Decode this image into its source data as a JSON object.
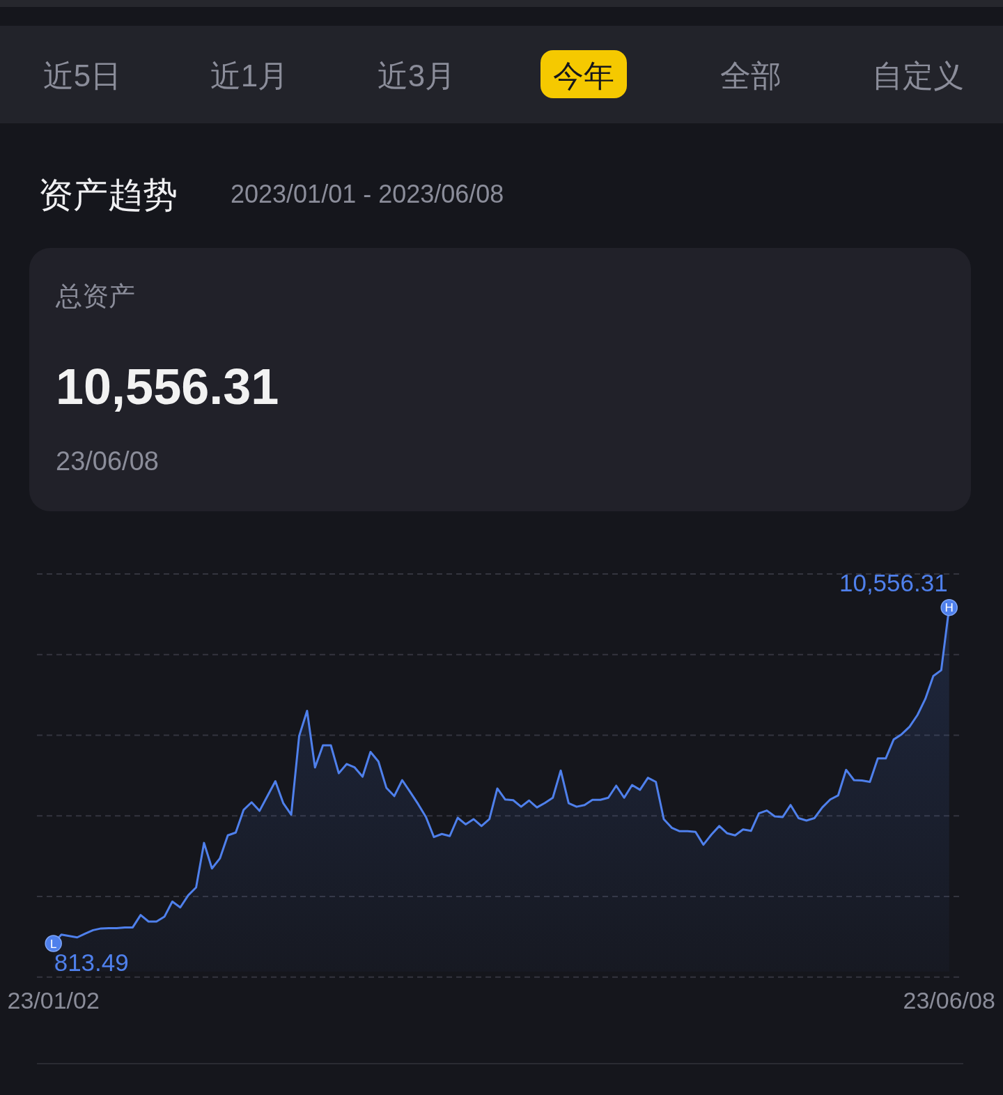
{
  "chart_data": {
    "type": "area",
    "title": "资产趋势",
    "subtitle": "2023/01/01 - 2023/06/08",
    "annotations": [
      "近5日",
      "近1月",
      "近3月",
      "今年",
      "全部",
      "自定义",
      "总资产",
      "10,556.31",
      "23/06/08",
      {
        "text": "L",
        "x": "23/01/02",
        "y": 813.49
      },
      {
        "text": "H",
        "x": "23/06/08",
        "y": 10556.31
      }
    ],
    "categories": [
      "23/01/02",
      null,
      null,
      null,
      null,
      null,
      null,
      null,
      null,
      null,
      null,
      null,
      null,
      null,
      null,
      null,
      null,
      null,
      null,
      null,
      null,
      null,
      null,
      null,
      null,
      null,
      null,
      null,
      null,
      null,
      null,
      null,
      null,
      null,
      null,
      null,
      null,
      null,
      null,
      null,
      null,
      null,
      null,
      null,
      null,
      null,
      null,
      null,
      null,
      null,
      null,
      null,
      null,
      null,
      null,
      null,
      null,
      null,
      null,
      null,
      null,
      null,
      null,
      null,
      null,
      null,
      null,
      null,
      null,
      null,
      null,
      null,
      null,
      null,
      null,
      null,
      null,
      null,
      null,
      null,
      null,
      null,
      null,
      null,
      null,
      null,
      null,
      null,
      null,
      null,
      null,
      null,
      null,
      null,
      null,
      null,
      null,
      null,
      null,
      null,
      null,
      null,
      null,
      null,
      null,
      null,
      null,
      null,
      null,
      null,
      null,
      null,
      null,
      "23/06/08"
    ],
    "values": [
      813.49,
      1070,
      1030,
      990,
      1100,
      1200,
      1250,
      1260,
      1260,
      1280,
      1280,
      1640,
      1450,
      1450,
      1590,
      2030,
      1860,
      2210,
      2440,
      3730,
      2990,
      3280,
      3950,
      4030,
      4690,
      4910,
      4660,
      5090,
      5520,
      4880,
      4550,
      6830,
      7560,
      5920,
      6560,
      6560,
      5750,
      6020,
      5920,
      5650,
      6370,
      6090,
      5330,
      5090,
      5550,
      5210,
      4860,
      4480,
      3900,
      3990,
      3930,
      4460,
      4270,
      4420,
      4220,
      4420,
      5310,
      4990,
      4970,
      4780,
      4960,
      4760,
      4890,
      5040,
      5830,
      4880,
      4780,
      4830,
      4980,
      4980,
      5040,
      5390,
      5040,
      5410,
      5270,
      5620,
      5500,
      4420,
      4170,
      4070,
      4070,
      4050,
      3680,
      3970,
      4220,
      4010,
      3950,
      4120,
      4080,
      4590,
      4670,
      4500,
      4480,
      4830,
      4450,
      4380,
      4450,
      4760,
      4990,
      5110,
      5850,
      5550,
      5540,
      5500,
      6180,
      6180,
      6730,
      6880,
      7100,
      7440,
      7910,
      8570,
      8740,
      10556.31
    ],
    "value_labels": [
      "813.49",
      null,
      null,
      null,
      null,
      null,
      null,
      null,
      null,
      null,
      null,
      null,
      null,
      null,
      null,
      null,
      null,
      null,
      null,
      null,
      null,
      null,
      null,
      null,
      null,
      null,
      null,
      null,
      null,
      null,
      null,
      null,
      null,
      null,
      null,
      null,
      null,
      null,
      null,
      null,
      null,
      null,
      null,
      null,
      null,
      null,
      null,
      null,
      null,
      null,
      null,
      null,
      null,
      null,
      null,
      null,
      null,
      null,
      null,
      null,
      null,
      null,
      null,
      null,
      null,
      null,
      null,
      null,
      null,
      null,
      null,
      null,
      null,
      null,
      null,
      null,
      null,
      null,
      null,
      null,
      null,
      null,
      null,
      null,
      null,
      null,
      null,
      null,
      null,
      null,
      null,
      null,
      null,
      null,
      null,
      null,
      null,
      null,
      null,
      null,
      null,
      null,
      null,
      null,
      null,
      null,
      null,
      null,
      null,
      null,
      null,
      null,
      null,
      "10,556.31"
    ],
    "color": "#4f80ec",
    "ylim": [
      -160,
      11530
    ],
    "yticks": [
      {
        "value": -160,
        "label": null
      },
      {
        "value": 2178,
        "label": null
      },
      {
        "value": 4516,
        "label": null
      },
      {
        "value": 6854,
        "label": null
      },
      {
        "value": 9192,
        "label": null
      },
      {
        "value": 11530,
        "label": null
      }
    ],
    "grid": "y",
    "tick_labels": "x"
  }
}
